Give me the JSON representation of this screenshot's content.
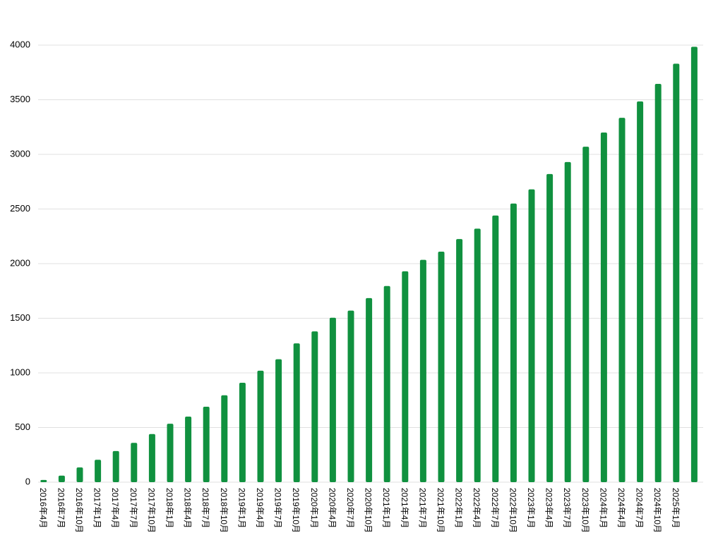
{
  "chart_data": {
    "type": "bar",
    "categories": [
      "2016年4月",
      "2016年7月",
      "2016年10月",
      "2017年1月",
      "2017年4月",
      "2017年7月",
      "2017年10月",
      "2018年1月",
      "2018年4月",
      "2018年7月",
      "2018年10月",
      "2019年1月",
      "2019年4月",
      "2019年7月",
      "2019年10月",
      "2020年1月",
      "2020年4月",
      "2020年7月",
      "2020年10月",
      "2021年1月",
      "2021年4月",
      "2021年7月",
      "2021年10月",
      "2022年1月",
      "2022年4月",
      "2022年7月",
      "2022年10月",
      "2023年1月",
      "2023年4月",
      "2023年7月",
      "2023年10月",
      "2024年1月",
      "2024年4月",
      "2024年7月",
      "2024年10月",
      "2025年1月",
      null
    ],
    "values": [
      20,
      60,
      135,
      205,
      285,
      360,
      440,
      535,
      600,
      690,
      795,
      910,
      1020,
      1125,
      1270,
      1380,
      1505,
      1570,
      1685,
      1795,
      1930,
      2035,
      2110,
      2225,
      2320,
      2440,
      2550,
      2680,
      2820,
      2930,
      3070,
      3200,
      3335,
      3485,
      3645,
      3830,
      3985
    ],
    "color": "#10913f",
    "ylim": [
      0,
      4000
    ],
    "yticks": [
      0,
      500,
      1000,
      1500,
      2000,
      2500,
      3000,
      3500,
      4000
    ],
    "grid": true
  }
}
